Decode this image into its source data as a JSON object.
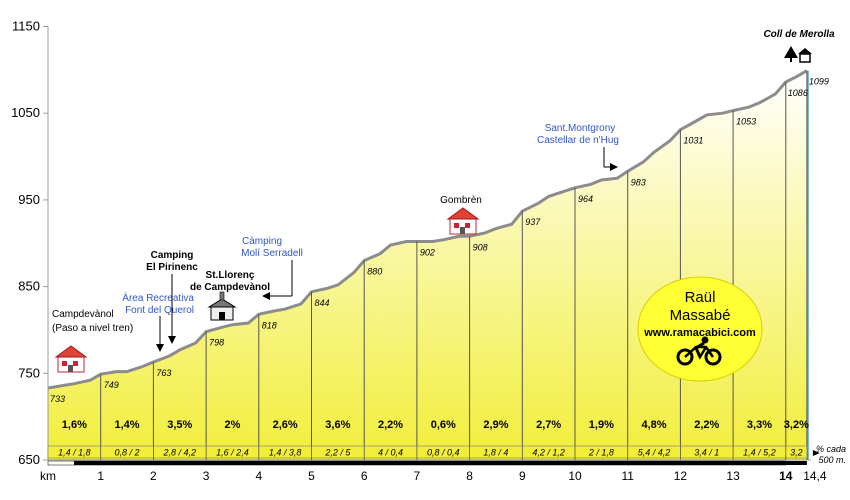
{
  "chart_data": {
    "type": "area",
    "title": "",
    "xlabel": "km",
    "ylabel": "",
    "xlim": [
      0,
      14.4
    ],
    "ylim": [
      650,
      1150
    ],
    "y_ticks": [
      "1150",
      "1050",
      "950",
      "850",
      "750",
      "650"
    ],
    "x_ticks": [
      "1",
      "2",
      "3",
      "4",
      "5",
      "6",
      "7",
      "8",
      "9",
      "10",
      "11",
      "12",
      "13",
      "14",
      "14,4"
    ],
    "x_unit_label": "km",
    "grid": false,
    "profile_x": [
      0,
      0.3,
      0.5,
      0.8,
      1.0,
      1.3,
      1.5,
      1.8,
      2.0,
      2.3,
      2.5,
      2.8,
      3.0,
      3.3,
      3.5,
      3.8,
      4.0,
      4.3,
      4.5,
      4.8,
      5.0,
      5.3,
      5.5,
      5.8,
      6.0,
      6.3,
      6.5,
      6.8,
      7.0,
      7.3,
      7.5,
      7.8,
      8.0,
      8.3,
      8.5,
      8.8,
      9.0,
      9.3,
      9.5,
      9.8,
      10.0,
      10.3,
      10.5,
      10.8,
      11.0,
      11.3,
      11.5,
      11.8,
      12.0,
      12.3,
      12.5,
      12.8,
      13.0,
      13.3,
      13.5,
      13.8,
      14.0,
      14.2,
      14.4
    ],
    "profile_y": [
      733,
      736,
      738,
      742,
      749,
      752,
      752,
      758,
      763,
      770,
      777,
      785,
      798,
      803,
      806,
      808,
      818,
      822,
      824,
      830,
      844,
      848,
      852,
      866,
      880,
      888,
      898,
      902,
      902,
      902,
      904,
      908,
      908,
      912,
      917,
      922,
      937,
      946,
      954,
      960,
      964,
      968,
      973,
      975,
      983,
      994,
      1005,
      1018,
      1031,
      1041,
      1048,
      1050,
      1053,
      1057,
      1062,
      1072,
      1086,
      1092,
      1099
    ],
    "point_labels": [
      {
        "x": 0,
        "y": 733,
        "text": "733"
      },
      {
        "x": 1,
        "y": 749,
        "text": "749"
      },
      {
        "x": 2,
        "y": 763,
        "text": "763"
      },
      {
        "x": 3,
        "y": 798,
        "text": "798"
      },
      {
        "x": 4,
        "y": 818,
        "text": "818"
      },
      {
        "x": 5,
        "y": 844,
        "text": "844"
      },
      {
        "x": 6,
        "y": 880,
        "text": "880"
      },
      {
        "x": 7,
        "y": 902,
        "text": "902"
      },
      {
        "x": 8,
        "y": 908,
        "text": "908"
      },
      {
        "x": 9,
        "y": 937,
        "text": "937"
      },
      {
        "x": 10,
        "y": 964,
        "text": "964"
      },
      {
        "x": 11,
        "y": 983,
        "text": "983"
      },
      {
        "x": 12,
        "y": 1031,
        "text": "1031"
      },
      {
        "x": 13,
        "y": 1053,
        "text": "1053"
      },
      {
        "x": 14,
        "y": 1086,
        "text": "1086"
      },
      {
        "x": 14.4,
        "y": 1099,
        "text": "1099"
      }
    ],
    "gradients": [
      "1,6%",
      "1,4%",
      "3,5%",
      "2%",
      "2,6%",
      "3,6%",
      "2,2%",
      "0,6%",
      "2,9%",
      "2,7%",
      "1,9%",
      "4,8%",
      "2,2%",
      "3,3%",
      "3,2%"
    ],
    "segment_gradients": [
      "1,4 / 1,8",
      "0,8 / 2",
      "2,8 / 4,2",
      "1,6 / 2,4",
      "1,4 / 3,8",
      "2,2 / 5",
      "4 / 0,4",
      "0,8 / 0,4",
      "1,8 / 4",
      "4,2 / 1,2",
      "2 / 1,8",
      "5,4 / 4,2",
      "3,4 / 1",
      "1,4 / 5,2",
      "3,2"
    ],
    "segment_note": [
      "% cada",
      "500 m."
    ],
    "annotations": [
      {
        "lines": [
          "Campdevànol",
          "(Paso a nivel tren)"
        ],
        "x": 0,
        "style": "plain"
      },
      {
        "lines": [
          "Àrea Recreativa",
          "Font del Querol"
        ],
        "x": 2.2,
        "style": "blue"
      },
      {
        "lines": [
          "Camping",
          "El Pirinenc"
        ],
        "x": 2.4,
        "style": "bold"
      },
      {
        "lines": [
          "St.Llorenç",
          "de Campdevànol"
        ],
        "x": 3.6,
        "style": "bold"
      },
      {
        "lines": [
          "Càmping",
          "Molí Serradell"
        ],
        "x": 4.3,
        "style": "blue"
      },
      {
        "lines": [
          "Gombrèn"
        ],
        "x": 8,
        "style": "plain"
      },
      {
        "lines": [
          "Sant.Montgrony",
          "Castellar de n'Hug"
        ],
        "x": 11.1,
        "style": "blue"
      },
      {
        "lines": [
          "Coll de Merolla"
        ],
        "x": 14.3,
        "style": "bolditalic"
      }
    ],
    "badge": {
      "line1": "Raül",
      "line2": "Massabé",
      "line3": "www.ramacabici.com"
    },
    "colors": {
      "fill_top": "#ffffff",
      "fill_bottom": "#f2ee3a",
      "profile_line": "#8c8c8c",
      "km_bar": "#000000",
      "blue_text": "#3355cc",
      "badge_bg": "#ffff33"
    }
  }
}
